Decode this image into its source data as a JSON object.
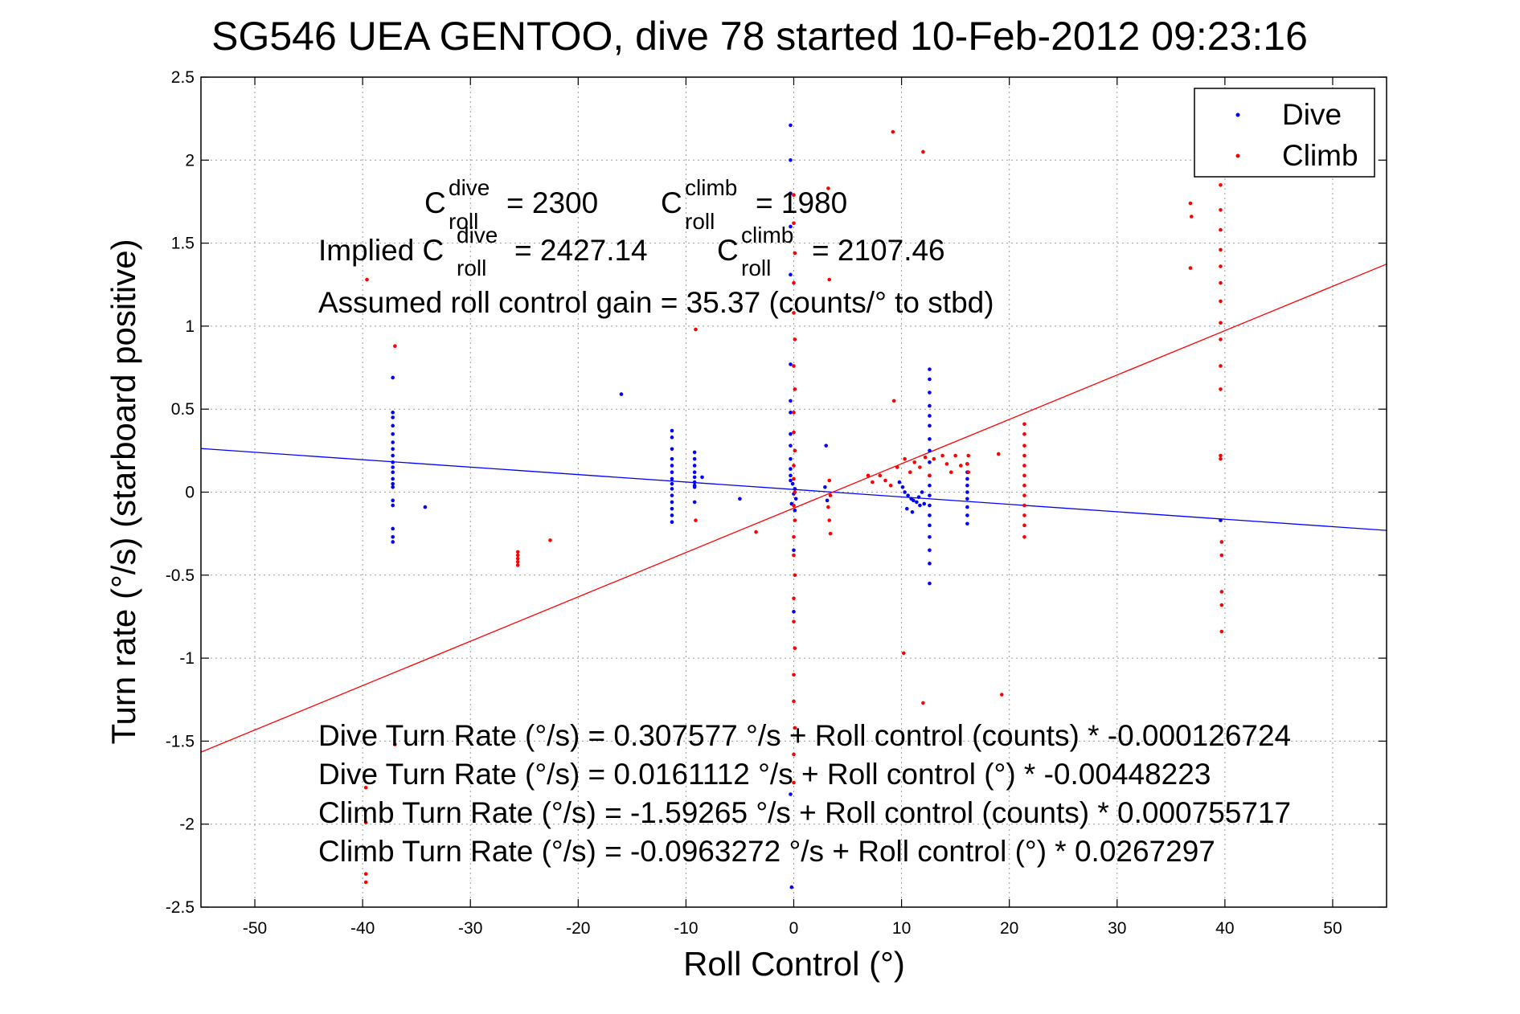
{
  "chart_data": {
    "type": "scatter",
    "title": "SG546 UEA GENTOO, dive 78 started 10-Feb-2012 09:23:16",
    "xlabel": "Roll Control (°)",
    "ylabel": "Turn rate (°/s) (starboard positive)",
    "xlim": [
      -55,
      55
    ],
    "ylim": [
      -2.5,
      2.5
    ],
    "grid": true,
    "legend_position": "top-right",
    "x_ticks": [
      "-50",
      "-40",
      "-30",
      "-20",
      "-10",
      "0",
      "10",
      "20",
      "30",
      "40",
      "50"
    ],
    "x_tick_values": [
      -50,
      -40,
      -30,
      -20,
      -10,
      0,
      10,
      20,
      30,
      40,
      50
    ],
    "y_ticks": [
      "2.5",
      "2",
      "1.5",
      "1",
      "0.5",
      "0",
      "-0.5",
      "-1",
      "-1.5",
      "-2",
      "-2.5"
    ],
    "y_tick_values": [
      2.5,
      2,
      1.5,
      1,
      0.5,
      0,
      -0.5,
      -1,
      -1.5,
      -2,
      -2.5
    ],
    "colors": {
      "dive": "#0000ff",
      "climb": "#ff0000"
    },
    "series": [
      {
        "name": "Dive",
        "color": "#0000ff",
        "fit": {
          "intercept": 0.0161112,
          "slope": -0.00448223
        },
        "points": [
          [
            -37.2,
            0.69
          ],
          [
            -37.2,
            0.48
          ],
          [
            -37.2,
            0.45
          ],
          [
            -37.2,
            0.4
          ],
          [
            -37.2,
            0.35
          ],
          [
            -37.2,
            0.3
          ],
          [
            -37.2,
            0.26
          ],
          [
            -37.2,
            0.22
          ],
          [
            -37.2,
            0.18
          ],
          [
            -37.2,
            0.15
          ],
          [
            -37.2,
            0.12
          ],
          [
            -37.2,
            0.08
          ],
          [
            -37.2,
            0.05
          ],
          [
            -37.2,
            0.03
          ],
          [
            -37.2,
            -0.05
          ],
          [
            -37.2,
            -0.08
          ],
          [
            -37.2,
            -0.22
          ],
          [
            -37.2,
            -0.27
          ],
          [
            -37.2,
            -0.3
          ],
          [
            -34.2,
            -0.09
          ],
          [
            -16.0,
            0.59
          ],
          [
            -11.3,
            0.37
          ],
          [
            -11.3,
            0.33
          ],
          [
            -11.3,
            0.26
          ],
          [
            -11.3,
            0.2
          ],
          [
            -11.3,
            0.16
          ],
          [
            -11.3,
            0.12
          ],
          [
            -11.3,
            0.08
          ],
          [
            -11.3,
            0.05
          ],
          [
            -11.3,
            0.02
          ],
          [
            -11.3,
            -0.02
          ],
          [
            -11.3,
            -0.06
          ],
          [
            -11.3,
            -0.1
          ],
          [
            -11.3,
            -0.14
          ],
          [
            -11.3,
            -0.18
          ],
          [
            -9.2,
            0.24
          ],
          [
            -9.2,
            0.2
          ],
          [
            -9.2,
            0.16
          ],
          [
            -9.2,
            0.12
          ],
          [
            -9.2,
            0.09
          ],
          [
            -9.2,
            0.06
          ],
          [
            -9.2,
            0.04
          ],
          [
            -9.2,
            0.03
          ],
          [
            -8.5,
            0.09
          ],
          [
            -9.2,
            -0.06
          ],
          [
            -5.0,
            -0.04
          ],
          [
            -0.3,
            2.21
          ],
          [
            -0.3,
            2.0
          ],
          [
            -0.3,
            1.8
          ],
          [
            -0.3,
            1.6
          ],
          [
            -0.3,
            1.31
          ],
          [
            -0.3,
            0.77
          ],
          [
            -0.3,
            0.55
          ],
          [
            -0.3,
            0.48
          ],
          [
            -0.3,
            0.35
          ],
          [
            -0.3,
            0.28
          ],
          [
            -0.3,
            0.2
          ],
          [
            -0.3,
            0.14
          ],
          [
            -0.3,
            0.1
          ],
          [
            -0.3,
            0.07
          ],
          [
            -0.1,
            0.05
          ],
          [
            0.1,
            0.02
          ],
          [
            0.0,
            -0.01
          ],
          [
            0.2,
            -0.04
          ],
          [
            -0.2,
            -0.07
          ],
          [
            0.1,
            -0.11
          ],
          [
            0.0,
            -0.35
          ],
          [
            0.0,
            -0.72
          ],
          [
            -0.2,
            -2.38
          ],
          [
            -0.3,
            -1.82
          ],
          [
            2.9,
            0.03
          ],
          [
            3.0,
            0.28
          ],
          [
            3.1,
            -0.05
          ],
          [
            9.8,
            0.06
          ],
          [
            10.1,
            0.03
          ],
          [
            10.3,
            0.0
          ],
          [
            10.6,
            -0.02
          ],
          [
            10.9,
            -0.04
          ],
          [
            11.1,
            -0.05
          ],
          [
            11.4,
            -0.06
          ],
          [
            11.7,
            -0.08
          ],
          [
            10.5,
            -0.1
          ],
          [
            11.0,
            -0.12
          ],
          [
            11.6,
            -0.03
          ],
          [
            11.9,
            0.0
          ],
          [
            12.1,
            -0.07
          ],
          [
            12.6,
            0.74
          ],
          [
            12.6,
            0.68
          ],
          [
            12.6,
            0.6
          ],
          [
            12.6,
            0.52
          ],
          [
            12.6,
            0.46
          ],
          [
            12.6,
            0.4
          ],
          [
            12.6,
            0.32
          ],
          [
            12.6,
            0.25
          ],
          [
            12.6,
            0.18
          ],
          [
            12.6,
            0.1
          ],
          [
            12.6,
            0.04
          ],
          [
            12.6,
            -0.02
          ],
          [
            12.6,
            -0.08
          ],
          [
            12.6,
            -0.14
          ],
          [
            12.6,
            -0.2
          ],
          [
            12.6,
            -0.27
          ],
          [
            12.6,
            -0.35
          ],
          [
            12.6,
            -0.43
          ],
          [
            12.6,
            -0.55
          ],
          [
            16.1,
            0.17
          ],
          [
            16.1,
            0.12
          ],
          [
            16.1,
            0.08
          ],
          [
            16.1,
            0.04
          ],
          [
            16.1,
            0.0
          ],
          [
            16.1,
            -0.04
          ],
          [
            16.1,
            -0.09
          ],
          [
            16.1,
            -0.14
          ],
          [
            16.1,
            -0.19
          ],
          [
            39.6,
            -0.17
          ]
        ]
      },
      {
        "name": "Climb",
        "color": "#ff0000",
        "fit": {
          "intercept": -0.0963272,
          "slope": 0.0267297
        },
        "points": [
          [
            -39.6,
            1.28
          ],
          [
            -39.7,
            -1.78
          ],
          [
            -39.7,
            -1.99
          ],
          [
            -39.7,
            -2.3
          ],
          [
            -39.7,
            -2.35
          ],
          [
            -37.0,
            0.88
          ],
          [
            -37.0,
            -1.52
          ],
          [
            -25.6,
            -0.36
          ],
          [
            -25.6,
            -0.38
          ],
          [
            -25.6,
            -0.4
          ],
          [
            -25.6,
            -0.42
          ],
          [
            -25.6,
            -0.44
          ],
          [
            -22.6,
            -0.29
          ],
          [
            -9.1,
            0.98
          ],
          [
            -9.1,
            -0.17
          ],
          [
            -3.5,
            -0.24
          ],
          [
            0.0,
            1.79
          ],
          [
            0.0,
            1.62
          ],
          [
            0.1,
            1.44
          ],
          [
            0.0,
            1.26
          ],
          [
            0.0,
            1.08
          ],
          [
            0.1,
            0.92
          ],
          [
            0.0,
            0.76
          ],
          [
            0.1,
            0.62
          ],
          [
            0.0,
            0.48
          ],
          [
            0.0,
            0.36
          ],
          [
            0.1,
            0.25
          ],
          [
            0.0,
            0.16
          ],
          [
            0.0,
            0.08
          ],
          [
            0.1,
            0.0
          ],
          [
            0.0,
            -0.08
          ],
          [
            0.1,
            -0.17
          ],
          [
            0.0,
            -0.27
          ],
          [
            0.0,
            -0.38
          ],
          [
            0.1,
            -0.5
          ],
          [
            0.0,
            -0.64
          ],
          [
            0.0,
            -0.78
          ],
          [
            0.1,
            -0.94
          ],
          [
            0.0,
            -1.1
          ],
          [
            0.0,
            -1.26
          ],
          [
            0.1,
            -1.42
          ],
          [
            0.0,
            -1.58
          ],
          [
            0.0,
            -1.75
          ],
          [
            3.2,
            1.83
          ],
          [
            3.3,
            1.28
          ],
          [
            3.3,
            0.07
          ],
          [
            3.4,
            -0.02
          ],
          [
            3.2,
            -0.09
          ],
          [
            3.3,
            -0.17
          ],
          [
            3.4,
            -0.25
          ],
          [
            6.9,
            0.1
          ],
          [
            7.3,
            0.06
          ],
          [
            8.0,
            0.1
          ],
          [
            8.5,
            0.07
          ],
          [
            9.0,
            0.04
          ],
          [
            9.6,
            0.15
          ],
          [
            10.3,
            0.2
          ],
          [
            10.8,
            0.12
          ],
          [
            11.2,
            0.18
          ],
          [
            11.7,
            0.15
          ],
          [
            12.2,
            0.21
          ],
          [
            12.6,
            0.1
          ],
          [
            13.0,
            0.2
          ],
          [
            13.8,
            0.22
          ],
          [
            14.2,
            0.17
          ],
          [
            14.6,
            0.12
          ],
          [
            15.0,
            0.22
          ],
          [
            15.5,
            0.16
          ],
          [
            9.2,
            2.17
          ],
          [
            12.0,
            2.05
          ],
          [
            9.3,
            0.55
          ],
          [
            10.2,
            -0.97
          ],
          [
            12.0,
            -1.27
          ],
          [
            19.3,
            -1.22
          ],
          [
            16.2,
            0.22
          ],
          [
            16.1,
            0.17
          ],
          [
            16.2,
            0.12
          ],
          [
            19.0,
            0.23
          ],
          [
            21.4,
            0.41
          ],
          [
            21.4,
            0.35
          ],
          [
            21.4,
            0.28
          ],
          [
            21.4,
            0.22
          ],
          [
            21.4,
            0.16
          ],
          [
            21.4,
            0.1
          ],
          [
            21.4,
            0.04
          ],
          [
            21.4,
            -0.02
          ],
          [
            21.4,
            -0.08
          ],
          [
            21.4,
            -0.14
          ],
          [
            21.4,
            -0.2
          ],
          [
            21.4,
            -0.27
          ],
          [
            36.8,
            1.74
          ],
          [
            36.9,
            1.66
          ],
          [
            36.8,
            1.35
          ],
          [
            39.6,
            1.85
          ],
          [
            39.6,
            1.7
          ],
          [
            39.6,
            1.58
          ],
          [
            39.6,
            1.46
          ],
          [
            39.6,
            1.36
          ],
          [
            39.6,
            1.26
          ],
          [
            39.6,
            1.15
          ],
          [
            39.6,
            1.02
          ],
          [
            39.6,
            0.92
          ],
          [
            39.6,
            0.76
          ],
          [
            39.6,
            0.62
          ],
          [
            39.6,
            0.22
          ],
          [
            39.6,
            0.2
          ],
          [
            39.7,
            -0.3
          ],
          [
            39.7,
            -0.38
          ],
          [
            39.7,
            -0.6
          ],
          [
            39.7,
            -0.68
          ],
          [
            39.7,
            -0.84
          ]
        ]
      }
    ],
    "annotations": {
      "c_dive_label": "C",
      "c_dive_sup": "dive",
      "c_dive_sub": "roll",
      "c_dive_value": "= 2300",
      "c_climb_label": "C",
      "c_climb_sup": "climb",
      "c_climb_sub": "roll",
      "c_climb_value": "= 1980",
      "implied_prefix": "Implied C",
      "implied_dive_sup": "dive",
      "implied_dive_sub": "roll",
      "implied_dive_value": "= 2427.14",
      "implied_climb_label": "C",
      "implied_climb_sup": "climb",
      "implied_climb_sub": "roll",
      "implied_climb_value": "= 2107.46",
      "gain": "Assumed roll control gain = 35.37 (counts/° to stbd)",
      "fit_lines": [
        "Dive Turn Rate (°/s) = 0.307577 °/s + Roll control (counts) * -0.000126724",
        "Dive Turn Rate (°/s) = 0.0161112 °/s + Roll control (°) * -0.00448223",
        "Climb Turn Rate (°/s) = -1.59265 °/s + Roll control (counts) * 0.000755717",
        "Climb Turn Rate (°/s) = -0.0963272 °/s + Roll control (°) * 0.0267297"
      ]
    }
  }
}
